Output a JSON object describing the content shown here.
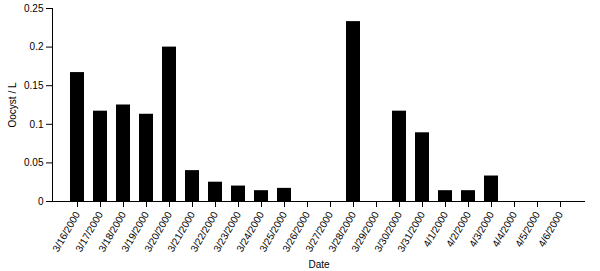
{
  "chart_data": {
    "type": "bar",
    "x_label": "Date",
    "y_label": "Oocyst / L",
    "categories": [
      "3/16/2000",
      "3/17/2000",
      "3/18/2000",
      "3/19/2000",
      "3/20/2000",
      "3/21/2000",
      "3/22/2000",
      "3/23/2000",
      "3/24/2000",
      "3/25/2000",
      "3/26/2000",
      "3/27/2000",
      "3/28/2000",
      "3/29/2000",
      "3/30/2000",
      "3/31/2000",
      "4/1/2000",
      "4/2/2000",
      "4/3/2000",
      "4/4/2000",
      "4/5/2000",
      "4/6/2000"
    ],
    "values": [
      0.167,
      0.117,
      0.125,
      0.113,
      0.2,
      0.04,
      0.025,
      0.02,
      0.014,
      0.017,
      0,
      0,
      0.233,
      0,
      0.117,
      0.089,
      0.014,
      0.014,
      0.033,
      0,
      0,
      0
    ],
    "color": "#000000",
    "ylim": [
      0,
      0.25
    ],
    "yticks": [
      0,
      0.05,
      0.1,
      0.15,
      0.2,
      0.25
    ],
    "grid": false
  }
}
